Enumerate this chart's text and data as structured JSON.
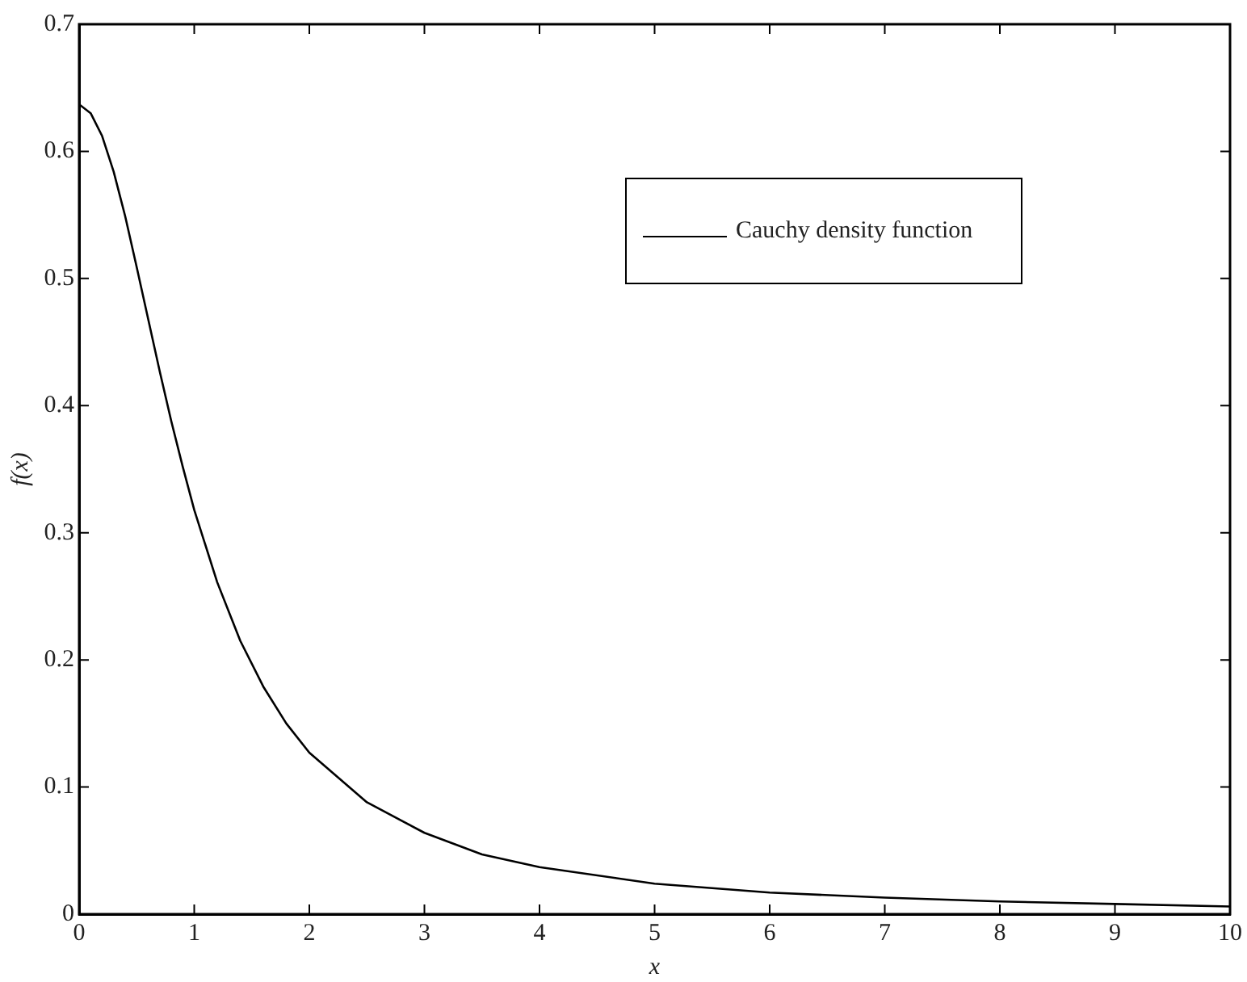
{
  "chart_data": {
    "type": "line",
    "xlabel": "x",
    "ylabel": "f(x)",
    "x": [
      0,
      0.1,
      0.2,
      0.3,
      0.4,
      0.5,
      0.6,
      0.7,
      0.8,
      0.9,
      1,
      1.2,
      1.4,
      1.6,
      1.8,
      2,
      2.5,
      3,
      3.5,
      4,
      5,
      6,
      7,
      8,
      9,
      10
    ],
    "series": [
      {
        "name": "Cauchy density function",
        "color": "#000000",
        "values": [
          0.637,
          0.63,
          0.612,
          0.584,
          0.549,
          0.509,
          0.468,
          0.427,
          0.388,
          0.352,
          0.318,
          0.261,
          0.215,
          0.179,
          0.15,
          0.127,
          0.088,
          0.064,
          0.047,
          0.037,
          0.024,
          0.017,
          0.013,
          0.01,
          0.008,
          0.006
        ]
      }
    ],
    "xlim": [
      0,
      10
    ],
    "xticks": [
      0,
      1,
      2,
      3,
      4,
      5,
      6,
      7,
      8,
      9,
      10
    ],
    "ylim": [
      0,
      0.7
    ],
    "yticks": [
      0,
      0.1,
      0.2,
      0.3,
      0.4,
      0.5,
      0.6,
      0.7
    ],
    "grid": false,
    "legend": "top right",
    "marker": "none",
    "line_style": "solid"
  }
}
